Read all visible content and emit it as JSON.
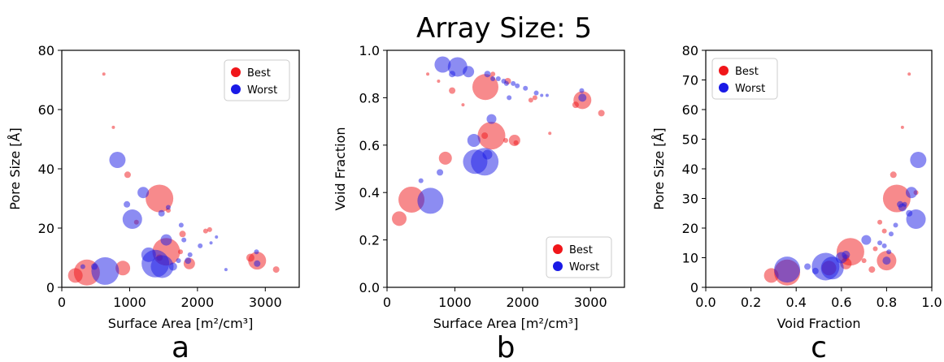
{
  "suptitle": "Array Size: 5",
  "colors": {
    "best": "#f0161a",
    "worst": "#1a1ae6"
  },
  "chart_data": [
    {
      "type": "scatter",
      "letter": "a",
      "xlabel": "Surface Area [m²/cm³]",
      "ylabel": "Pore Size [Å]",
      "xlim": [
        0,
        3500
      ],
      "ylim": [
        0,
        80
      ],
      "xticks": [
        "0",
        "1000",
        "2000",
        "3000"
      ],
      "yticks": [
        "0",
        "20",
        "40",
        "60",
        "80"
      ],
      "legend_position": "top-right",
      "series": [
        {
          "name": "Best",
          "color": "best",
          "points": [
            [
              200,
              4,
              9
            ],
            [
              370,
              5,
              16
            ],
            [
              620,
              72,
              2
            ],
            [
              760,
              54,
              2
            ],
            [
              900,
              6.5,
              9
            ],
            [
              970,
              38,
              4
            ],
            [
              1440,
              30,
              17
            ],
            [
              1540,
              12,
              17
            ],
            [
              1440,
              10,
              4
            ],
            [
              1570,
              26,
              3
            ],
            [
              1780,
              18,
              4
            ],
            [
              1880,
              8,
              7
            ],
            [
              2120,
              19,
              3
            ],
            [
              2180,
              19.5,
              3
            ],
            [
              2780,
              10,
              5
            ],
            [
              2880,
              9,
              11
            ],
            [
              3160,
              6,
              4
            ],
            [
              1750,
              12,
              3
            ],
            [
              1100,
              22,
              3
            ]
          ]
        },
        {
          "name": "Worst",
          "color": "worst",
          "points": [
            [
              310,
              7,
              3
            ],
            [
              480,
              7,
              4
            ],
            [
              640,
              5.5,
              17
            ],
            [
              820,
              43,
              10
            ],
            [
              960,
              28,
              4
            ],
            [
              1040,
              23,
              12
            ],
            [
              1200,
              32,
              7
            ],
            [
              1280,
              11,
              9
            ],
            [
              1380,
              8,
              17
            ],
            [
              1480,
              7,
              14
            ],
            [
              1540,
              16,
              7
            ],
            [
              1470,
              25,
              4
            ],
            [
              1570,
              27,
              3
            ],
            [
              1640,
              7,
              5
            ],
            [
              1720,
              9,
              3
            ],
            [
              1760,
              21,
              3
            ],
            [
              1800,
              16,
              3
            ],
            [
              1860,
              9,
              4
            ],
            [
              1890,
              11,
              3
            ],
            [
              2040,
              14,
              3
            ],
            [
              2200,
              15,
              2
            ],
            [
              2280,
              17,
              2
            ],
            [
              2420,
              6,
              2
            ],
            [
              2870,
              12,
              3
            ],
            [
              2880,
              8,
              4
            ]
          ]
        }
      ]
    },
    {
      "type": "scatter",
      "letter": "b",
      "xlabel": "Surface Area [m²/cm³]",
      "ylabel": "Void Fraction",
      "xlim": [
        0,
        3500
      ],
      "ylim": [
        0,
        1
      ],
      "xticks": [
        "0",
        "1000",
        "2000",
        "3000"
      ],
      "yticks": [
        "0.0",
        "0.2",
        "0.4",
        "0.6",
        "0.8",
        "1.0"
      ],
      "legend_position": "bottom-right",
      "series": [
        {
          "name": "Best",
          "color": "best",
          "points": [
            [
              180,
              0.29,
              9
            ],
            [
              360,
              0.37,
              16
            ],
            [
              600,
              0.9,
              2
            ],
            [
              760,
              0.87,
              2
            ],
            [
              860,
              0.545,
              8
            ],
            [
              960,
              0.83,
              4
            ],
            [
              1120,
              0.77,
              2
            ],
            [
              1450,
              0.845,
              16
            ],
            [
              1540,
              0.64,
              17
            ],
            [
              1440,
              0.64,
              4
            ],
            [
              1560,
              0.9,
              3
            ],
            [
              1780,
              0.87,
              4
            ],
            [
              1880,
              0.62,
              7
            ],
            [
              1900,
              0.61,
              3
            ],
            [
              2120,
              0.79,
              3
            ],
            [
              2180,
              0.8,
              3
            ],
            [
              2780,
              0.77,
              4
            ],
            [
              2880,
              0.79,
              11
            ],
            [
              3160,
              0.735,
              4
            ],
            [
              1750,
              0.62,
              3
            ],
            [
              2400,
              0.65,
              2
            ]
          ]
        },
        {
          "name": "Worst",
          "color": "worst",
          "points": [
            [
              500,
              0.45,
              3
            ],
            [
              640,
              0.365,
              16
            ],
            [
              780,
              0.485,
              4
            ],
            [
              820,
              0.94,
              10
            ],
            [
              960,
              0.9,
              4
            ],
            [
              1040,
              0.93,
              12
            ],
            [
              1200,
              0.91,
              7
            ],
            [
              1280,
              0.62,
              8
            ],
            [
              1300,
              0.53,
              15
            ],
            [
              1440,
              0.53,
              17
            ],
            [
              1480,
              0.56,
              6
            ],
            [
              1540,
              0.71,
              6
            ],
            [
              1480,
              0.9,
              4
            ],
            [
              1560,
              0.88,
              3
            ],
            [
              1640,
              0.88,
              3
            ],
            [
              1720,
              0.87,
              3
            ],
            [
              1760,
              0.86,
              3
            ],
            [
              1800,
              0.8,
              3
            ],
            [
              1860,
              0.86,
              3
            ],
            [
              1920,
              0.85,
              3
            ],
            [
              2040,
              0.84,
              3
            ],
            [
              2200,
              0.82,
              3
            ],
            [
              2280,
              0.81,
              2
            ],
            [
              2360,
              0.81,
              2
            ],
            [
              2870,
              0.83,
              3
            ],
            [
              2880,
              0.8,
              5
            ]
          ]
        }
      ]
    },
    {
      "type": "scatter",
      "letter": "c",
      "xlabel": "Void Fraction",
      "ylabel": "Pore Size [Å]",
      "xlim": [
        0,
        1
      ],
      "ylim": [
        0,
        80
      ],
      "xticks": [
        "0.0",
        "0.2",
        "0.4",
        "0.6",
        "0.8",
        "1.0"
      ],
      "yticks": [
        "0",
        "10",
        "20",
        "30",
        "40",
        "50",
        "60",
        "70",
        "80"
      ],
      "legend_position": "top-left",
      "series": [
        {
          "name": "Best",
          "color": "best",
          "points": [
            [
              0.29,
              4,
              9
            ],
            [
              0.36,
              5,
              16
            ],
            [
              0.545,
              6.5,
              9
            ],
            [
              0.62,
              8,
              7
            ],
            [
              0.62,
              10,
              4
            ],
            [
              0.64,
              12,
              17
            ],
            [
              0.8,
              9,
              12
            ],
            [
              0.83,
              38,
              4
            ],
            [
              0.845,
              30,
              17
            ],
            [
              0.87,
              54,
              2
            ],
            [
              0.9,
              72,
              2
            ],
            [
              0.77,
              22,
              3
            ],
            [
              0.79,
              19,
              3
            ],
            [
              0.75,
              13,
              3
            ],
            [
              0.735,
              6,
              4
            ],
            [
              0.7,
              9,
              3
            ],
            [
              0.93,
              32,
              3
            ]
          ]
        },
        {
          "name": "Worst",
          "color": "worst",
          "points": [
            [
              0.36,
              6,
              16
            ],
            [
              0.45,
              7,
              4
            ],
            [
              0.485,
              5.5,
              4
            ],
            [
              0.53,
              7,
              17
            ],
            [
              0.56,
              6.5,
              14
            ],
            [
              0.6,
              10,
              7
            ],
            [
              0.62,
              11,
              5
            ],
            [
              0.71,
              16,
              6
            ],
            [
              0.77,
              15,
              3
            ],
            [
              0.8,
              9,
              5
            ],
            [
              0.82,
              18,
              3
            ],
            [
              0.84,
              21,
              3
            ],
            [
              0.86,
              28,
              4
            ],
            [
              0.87,
              27,
              5
            ],
            [
              0.88,
              28,
              3
            ],
            [
              0.9,
              25,
              4
            ],
            [
              0.91,
              32,
              7
            ],
            [
              0.93,
              23,
              12
            ],
            [
              0.94,
              43,
              10
            ],
            [
              0.81,
              12,
              3
            ],
            [
              0.79,
              14,
              3
            ]
          ]
        }
      ]
    }
  ]
}
